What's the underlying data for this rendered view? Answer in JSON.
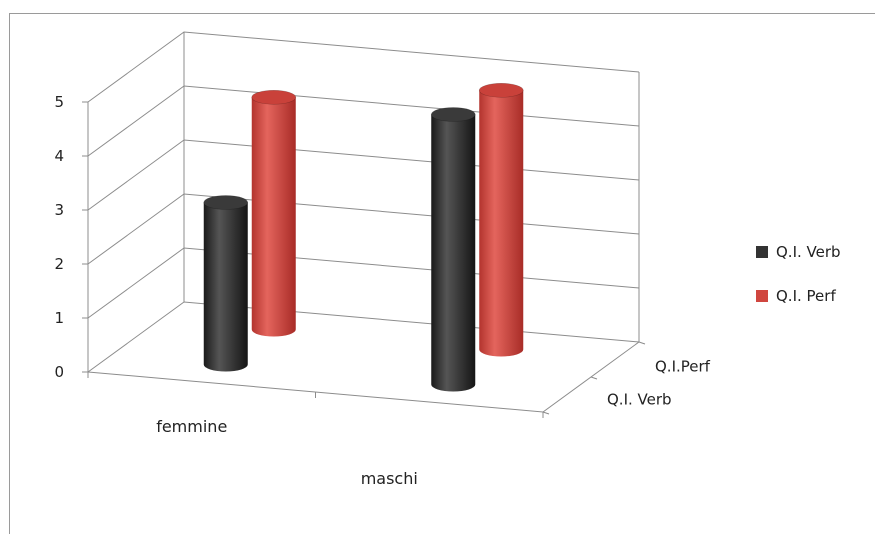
{
  "chart_data": {
    "type": "bar",
    "title": "",
    "categories": [
      "femmine",
      "maschi"
    ],
    "series": [
      {
        "name": "Q.I. Verb",
        "values": [
          3,
          5
        ],
        "color": "#333333"
      },
      {
        "name": "Q.I. Perf",
        "values": [
          4.3,
          4.8
        ],
        "color": "#d0463f"
      }
    ],
    "depth_labels": [
      "Q.I. Verb",
      "Q.I.Perf"
    ],
    "y_ticks": [
      "0",
      "1",
      "2",
      "3",
      "4",
      "5"
    ],
    "ylim": [
      0,
      5
    ],
    "legend_position": "right",
    "grid": true
  }
}
